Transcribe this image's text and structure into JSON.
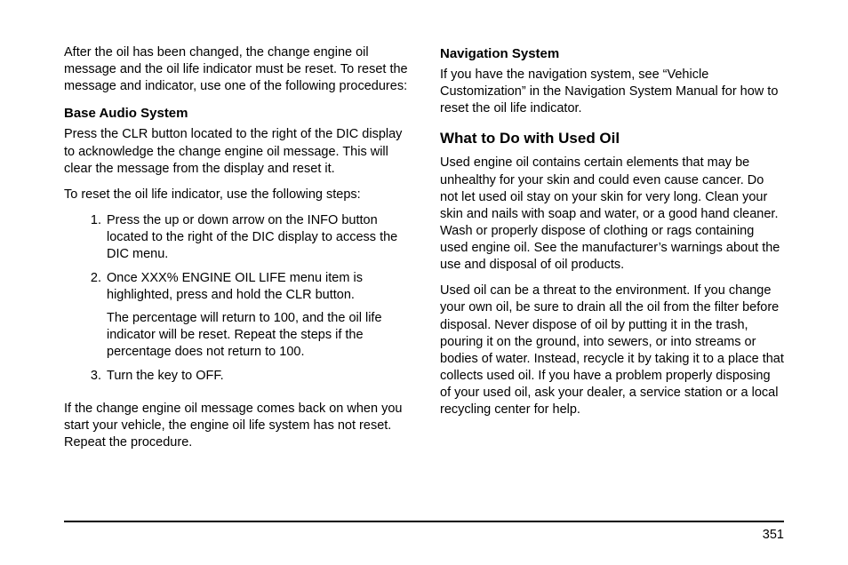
{
  "left": {
    "intro": "After the oil has been changed, the change engine oil message and the oil life indicator must be reset. To reset the message and indicator, use one of the following procedures:",
    "baseAudioHeading": "Base Audio System",
    "baseAudioPara1": "Press the CLR button located to the right of the DIC display to acknowledge the change engine oil message. This will clear the message from the display and reset it.",
    "baseAudioPara2": "To reset the oil life indicator, use the following steps:",
    "steps": {
      "s1": "Press the up or down arrow on the INFO button located to the right of the DIC display to access the DIC menu.",
      "s2": "Once XXX% ENGINE OIL LIFE menu item is highlighted, press and hold the CLR button.",
      "s2sub": "The percentage will return to 100, and the oil life indicator will be reset. Repeat the steps if the percentage does not return to 100.",
      "s3": "Turn the key to OFF."
    },
    "closing": "If the change engine oil message comes back on when you start your vehicle, the engine oil life system has not reset. Repeat the procedure."
  },
  "right": {
    "navHeading": "Navigation System",
    "navPara": "If you have the navigation system, see “Vehicle Customization” in the Navigation System Manual for how to reset the oil life indicator.",
    "usedOilHeading": "What to Do with Used Oil",
    "usedOilPara1": "Used engine oil contains certain elements that may be unhealthy for your skin and could even cause cancer. Do not let used oil stay on your skin for very long. Clean your skin and nails with soap and water, or a good hand cleaner. Wash or properly dispose of clothing or rags containing used engine oil. See the manufacturer’s warnings about the use and disposal of oil products.",
    "usedOilPara2": "Used oil can be a threat to the environment. If you change your own oil, be sure to drain all the oil from the filter before disposal. Never dispose of oil by putting it in the trash, pouring it on the ground, into sewers, or into streams or bodies of water. Instead, recycle it by taking it to a place that collects used oil. If you have a problem properly disposing of your used oil, ask your dealer, a service station or a local recycling center for help."
  },
  "pageNumber": "351"
}
